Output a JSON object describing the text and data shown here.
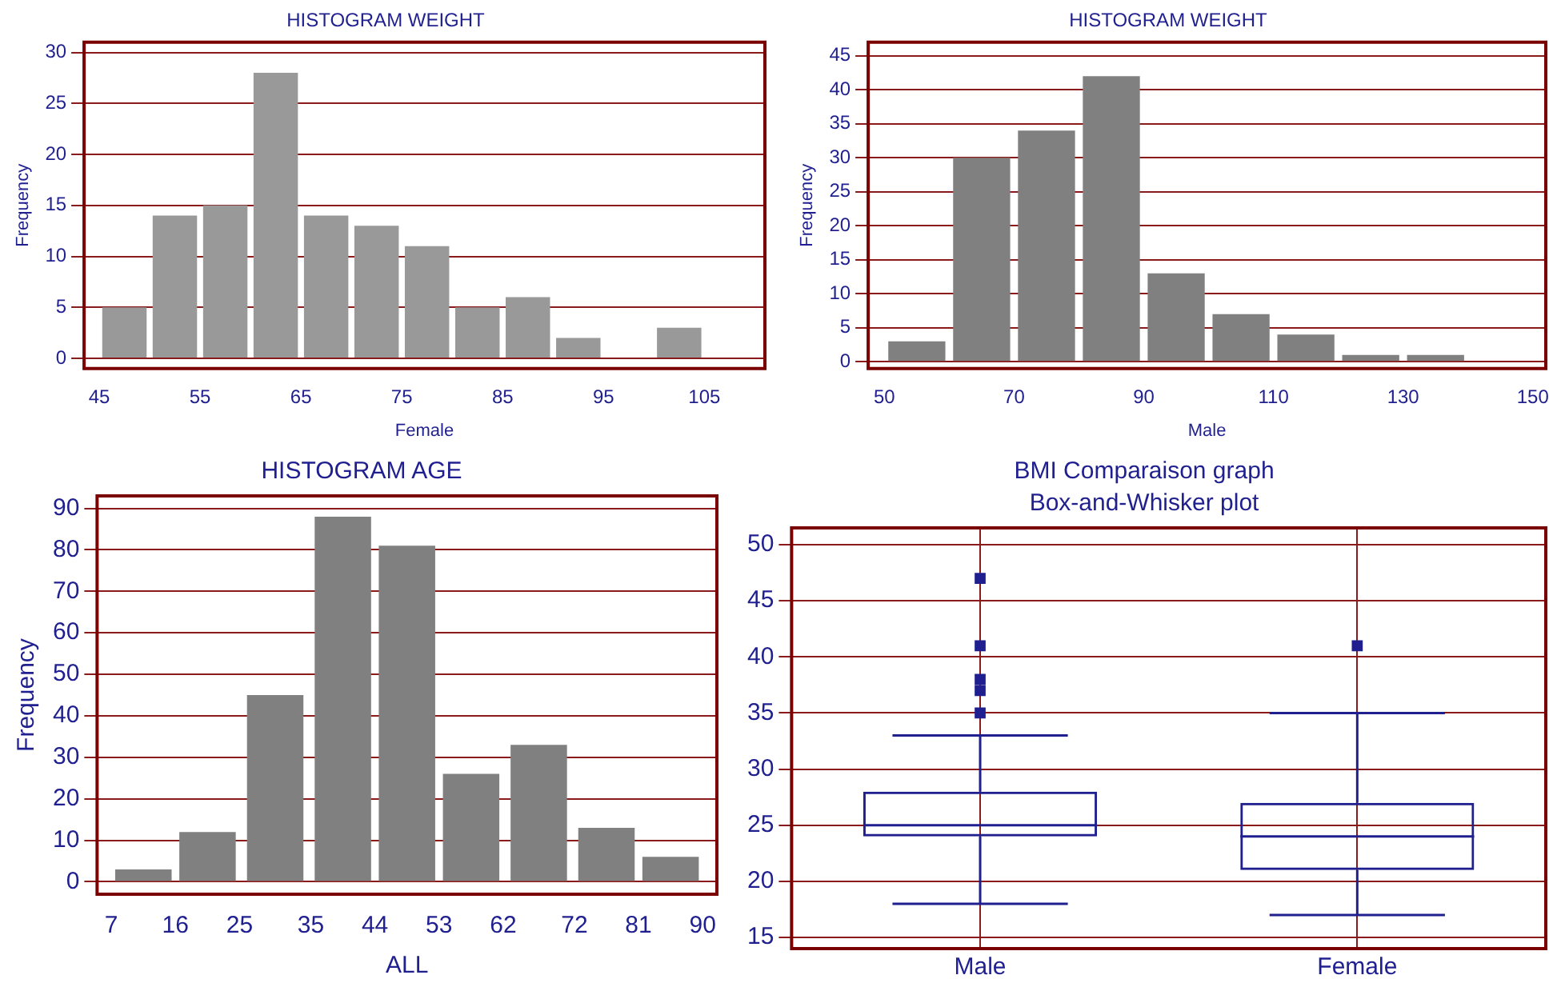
{
  "chart_data": [
    {
      "type": "histogram",
      "title": "HISTOGRAM WEIGHT",
      "xlabel": "Female",
      "ylabel": "Frequency",
      "bins": [
        45,
        50,
        55,
        60,
        65,
        70,
        75,
        80,
        85,
        90,
        95,
        100,
        105,
        110
      ],
      "values": [
        5,
        14,
        15,
        28,
        14,
        13,
        11,
        5,
        6,
        2,
        0,
        3,
        0
      ],
      "color": "#999999",
      "xlim": [
        43.5,
        111
      ],
      "xticks": [
        45,
        55,
        65,
        75,
        85,
        95,
        105
      ],
      "ylim": [
        -1,
        31
      ],
      "yticks": [
        0,
        5,
        10,
        15,
        20,
        25,
        30
      ],
      "grid": "y"
    },
    {
      "type": "histogram",
      "title": "HISTOGRAM WEIGHT",
      "xlabel": "Male",
      "ylabel": "Frequency",
      "bins": [
        50,
        60,
        70,
        80,
        90,
        100,
        110,
        120,
        130,
        140,
        150
      ],
      "values": [
        3,
        30,
        34,
        42,
        13,
        7,
        4,
        1,
        1,
        0
      ],
      "color": "#808080",
      "xlim": [
        47.5,
        152
      ],
      "xticks": [
        50,
        70,
        90,
        110,
        130,
        150
      ],
      "ylim": [
        -1,
        47
      ],
      "yticks": [
        0,
        5,
        10,
        15,
        20,
        25,
        30,
        35,
        40,
        45
      ],
      "grid": "y"
    },
    {
      "type": "histogram",
      "title": "HISTOGRAM AGE",
      "xlabel": "ALL",
      "ylabel": "Frequency",
      "bins": [
        7,
        16,
        25,
        35,
        44,
        53,
        62,
        72,
        81,
        90
      ],
      "values": [
        3,
        12,
        45,
        88,
        81,
        26,
        33,
        13,
        6
      ],
      "color": "#808080",
      "xlim": [
        5,
        92
      ],
      "xticks": [
        7,
        16,
        25,
        35,
        44,
        53,
        62,
        72,
        81,
        90
      ],
      "ylim": [
        -3,
        93
      ],
      "yticks": [
        0,
        10,
        20,
        30,
        40,
        50,
        60,
        70,
        80,
        90
      ],
      "grid": "y"
    },
    {
      "type": "box",
      "title": "BMI Comparaison graph",
      "subtitle": "Box-and-Whisker plot",
      "categories": [
        "Male",
        "Female"
      ],
      "color": "#1f1f8f",
      "boxes": [
        {
          "low": 18,
          "q1": 24,
          "median": 25,
          "q3": 28,
          "high": 33,
          "outliers": [
            35,
            37,
            38,
            41,
            47
          ]
        },
        {
          "low": 17,
          "q1": 21,
          "median": 24,
          "q3": 27,
          "high": 35,
          "outliers": [
            41
          ]
        }
      ],
      "ylim": [
        14,
        51.5
      ],
      "yticks": [
        15,
        20,
        25,
        30,
        35,
        40,
        45,
        50
      ],
      "grid": true
    }
  ]
}
